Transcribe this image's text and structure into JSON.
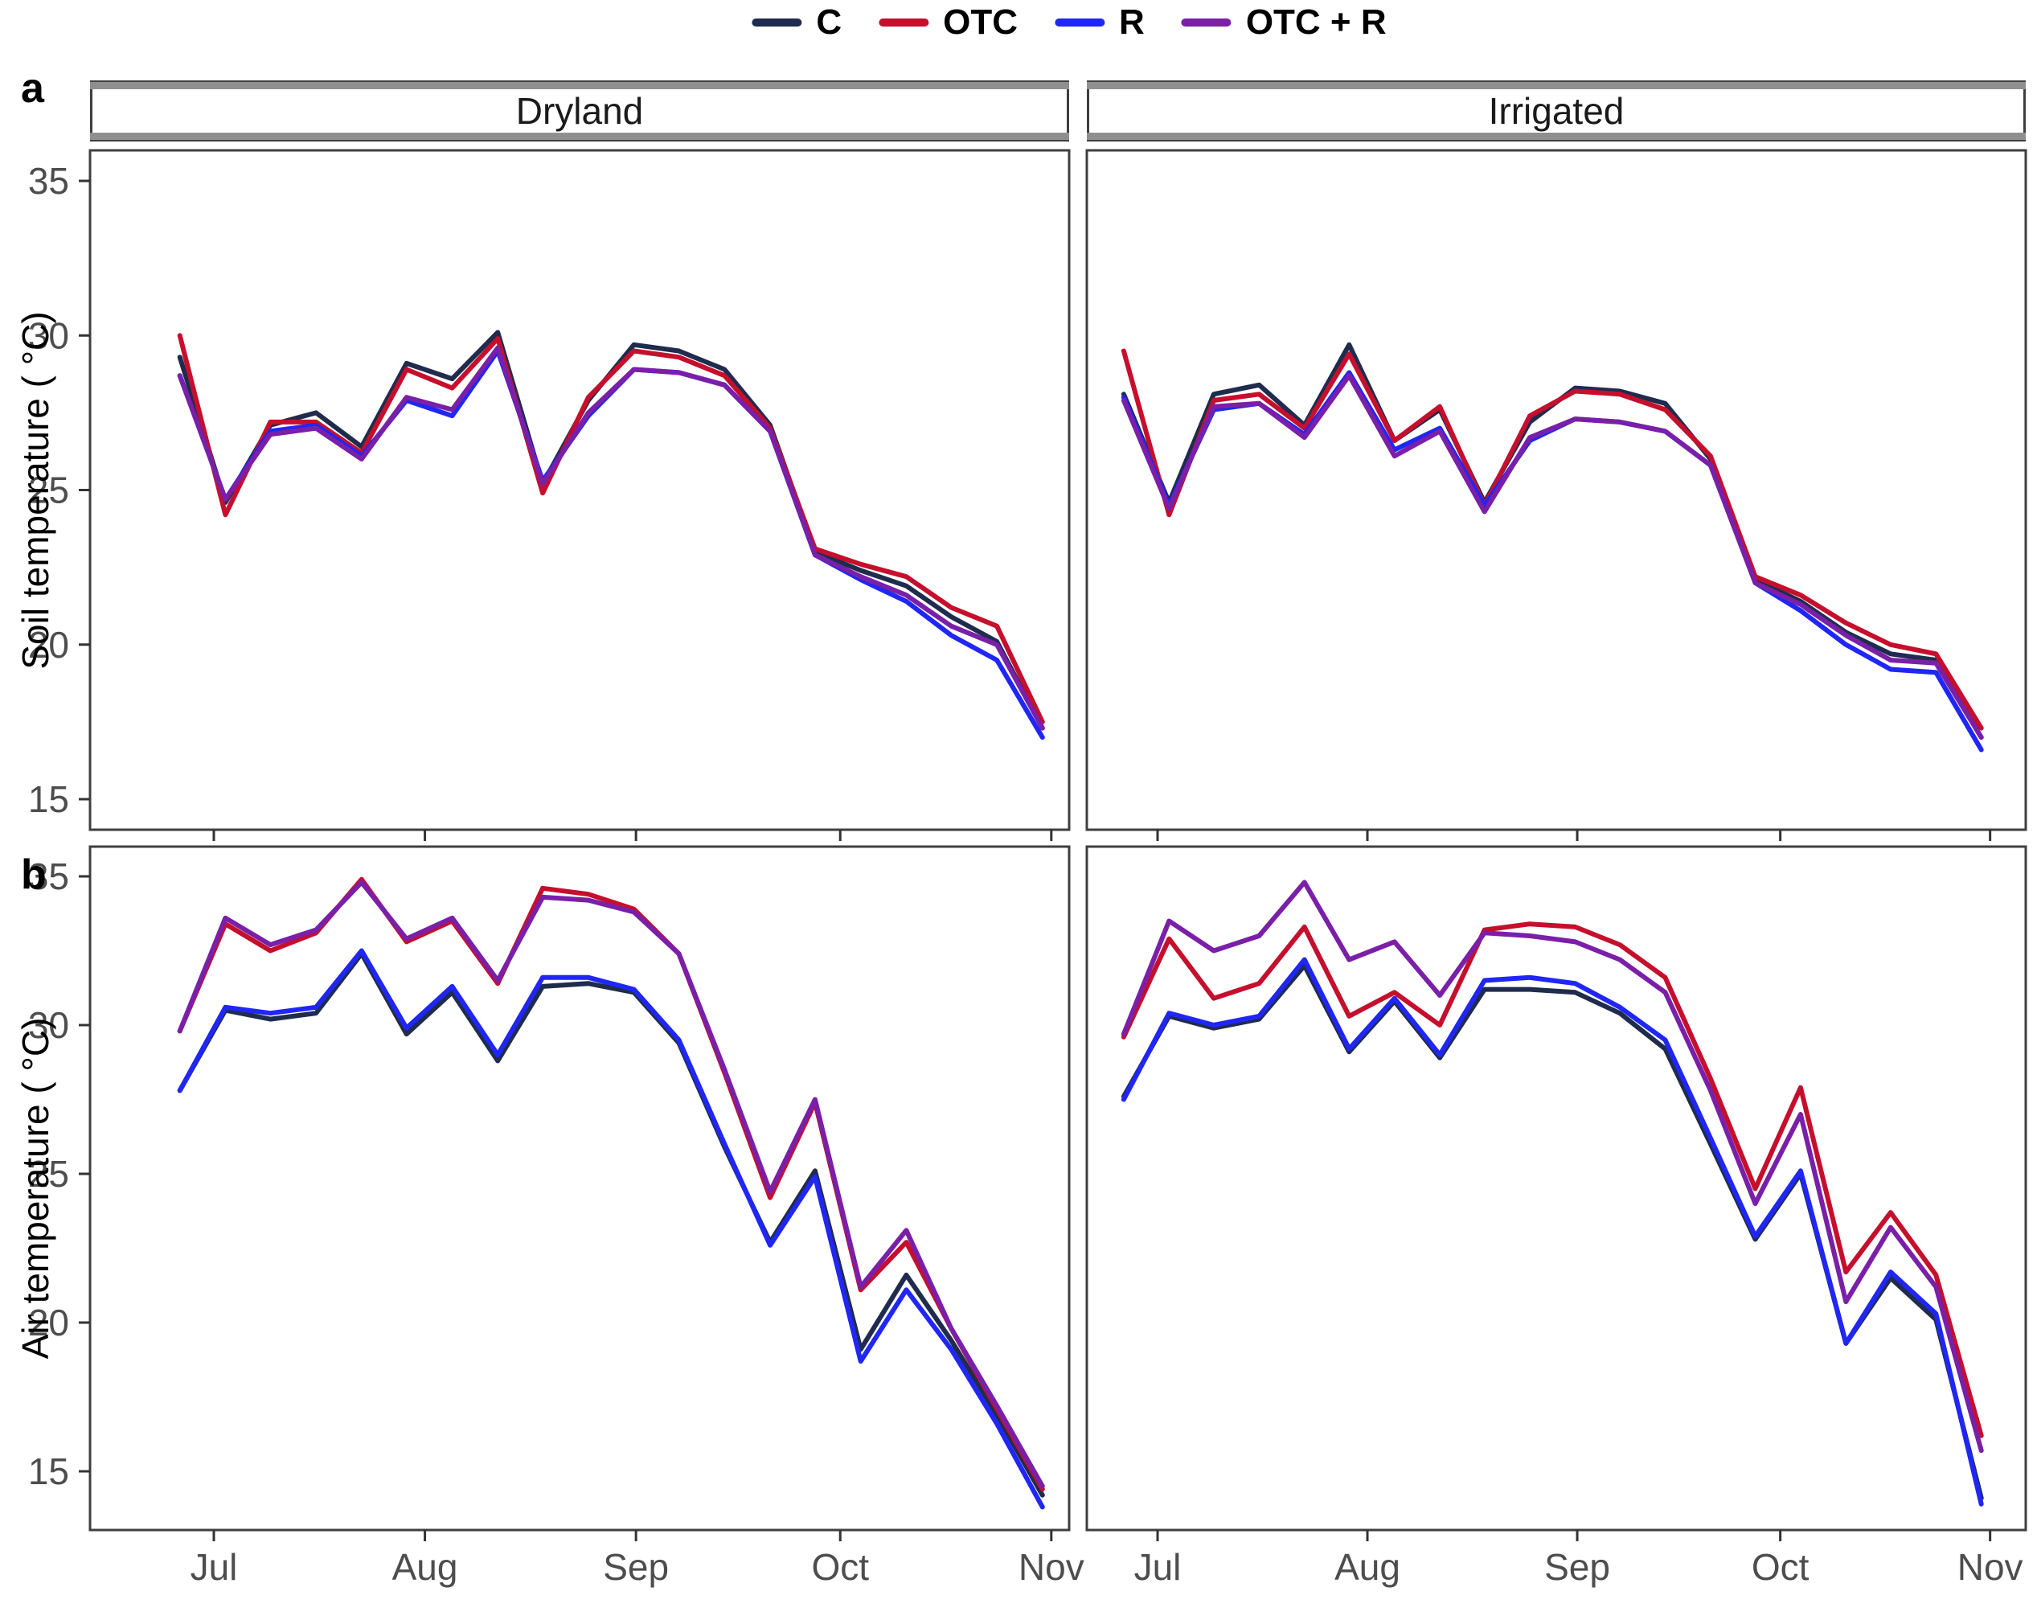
{
  "figure": {
    "panel_labels": [
      "a",
      "b"
    ],
    "facets": [
      "Dryland",
      "Irrigated"
    ],
    "background": "#ffffff",
    "border_color": "#3f3f3f",
    "tick_text_color": "#4d4d4d"
  },
  "legend": {
    "position": "top-center",
    "items": [
      {
        "label": "C",
        "color": "#1f2c4d"
      },
      {
        "label": "OTC",
        "color": "#c50f2d"
      },
      {
        "label": "R",
        "color": "#2026f5"
      },
      {
        "label": "OTC + R",
        "color": "#7a1fa8"
      }
    ]
  },
  "axes": {
    "y_label_top": "Soil temperature ( °C)",
    "y_label_bottom": "Air temperature ( °C)",
    "y_ticks": [
      35,
      30,
      25,
      20,
      15
    ],
    "x_tick_labels": [
      "Jul",
      "Aug",
      "Sep",
      "Oct",
      "Nov"
    ],
    "x_tick_days": [
      182,
      213,
      244,
      274,
      305
    ]
  },
  "chart_data": [
    {
      "id": "soil-dryland",
      "type": "line",
      "row": "a",
      "facet": "Dryland",
      "ylabel": "Soil temperature ( °C)",
      "ylim": [
        14,
        36.5
      ],
      "yticks": [
        15,
        20,
        25,
        30,
        35
      ],
      "grid": false,
      "legend_position": "top",
      "x_unit": "day_of_year (Jun 26 – Oct 31, ~weekly)",
      "x": [
        177,
        183.7,
        190.3,
        197,
        203.7,
        210.3,
        217,
        223.7,
        230.3,
        237,
        243.7,
        250.3,
        257,
        263.7,
        270.3,
        277,
        283.7,
        290.3,
        297,
        303.7
      ],
      "series": [
        {
          "name": "C",
          "color": "#1f2c4d",
          "values": [
            29.3,
            24.6,
            27.1,
            27.5,
            26.4,
            29.1,
            28.6,
            30.1,
            25.2,
            27.9,
            29.7,
            29.5,
            28.9,
            27.1,
            23.0,
            22.4,
            21.9,
            20.9,
            20.1,
            17.3
          ]
        },
        {
          "name": "OTC",
          "color": "#c50f2d",
          "values": [
            30.0,
            24.2,
            27.2,
            27.2,
            26.2,
            28.9,
            28.3,
            29.9,
            24.9,
            28.0,
            29.5,
            29.3,
            28.7,
            27.0,
            23.1,
            22.6,
            22.2,
            21.2,
            20.6,
            17.5
          ]
        },
        {
          "name": "R",
          "color": "#2026f5",
          "values": [
            28.7,
            24.7,
            26.9,
            27.1,
            26.1,
            27.9,
            27.4,
            29.5,
            25.3,
            27.4,
            28.9,
            28.8,
            28.4,
            26.9,
            22.9,
            22.1,
            21.4,
            20.3,
            19.5,
            17.0
          ]
        },
        {
          "name": "OTC + R",
          "color": "#7a1fa8",
          "values": [
            28.7,
            24.7,
            26.8,
            27.0,
            26.0,
            28.0,
            27.6,
            29.6,
            25.2,
            27.5,
            28.9,
            28.8,
            28.4,
            26.9,
            22.9,
            22.2,
            21.6,
            20.6,
            20.0,
            17.3
          ]
        }
      ]
    },
    {
      "id": "soil-irrigated",
      "type": "line",
      "row": "a",
      "facet": "Irrigated",
      "ylabel": "Soil temperature ( °C)",
      "ylim": [
        14,
        36.5
      ],
      "yticks": [
        15,
        20,
        25,
        30,
        35
      ],
      "grid": false,
      "legend_position": "top",
      "x_unit": "day_of_year (Jun 26 – Oct 31, ~weekly)",
      "x": [
        177,
        183.7,
        190.3,
        197,
        203.7,
        210.3,
        217,
        223.7,
        230.3,
        237,
        243.7,
        250.3,
        257,
        263.7,
        270.3,
        277,
        283.7,
        290.3,
        297,
        303.7
      ],
      "series": [
        {
          "name": "C",
          "color": "#1f2c4d",
          "values": [
            28.1,
            24.6,
            28.1,
            28.4,
            27.1,
            29.7,
            26.6,
            27.6,
            24.6,
            27.2,
            28.3,
            28.2,
            27.8,
            26.0,
            22.1,
            21.4,
            20.4,
            19.7,
            19.5,
            17.0
          ]
        },
        {
          "name": "OTC",
          "color": "#c50f2d",
          "values": [
            29.5,
            24.2,
            27.9,
            28.1,
            27.0,
            29.4,
            26.6,
            27.7,
            24.5,
            27.4,
            28.2,
            28.1,
            27.6,
            26.1,
            22.2,
            21.6,
            20.7,
            20.0,
            19.7,
            17.3
          ]
        },
        {
          "name": "R",
          "color": "#2026f5",
          "values": [
            28.0,
            24.5,
            27.6,
            27.8,
            26.8,
            28.8,
            26.3,
            27.0,
            24.5,
            26.6,
            27.3,
            27.2,
            26.9,
            25.8,
            22.0,
            21.1,
            20.0,
            19.2,
            19.1,
            16.6
          ]
        },
        {
          "name": "OTC + R",
          "color": "#7a1fa8",
          "values": [
            27.9,
            24.4,
            27.7,
            27.8,
            26.7,
            28.7,
            26.1,
            26.9,
            24.3,
            26.7,
            27.3,
            27.2,
            26.9,
            25.8,
            22.0,
            21.3,
            20.3,
            19.5,
            19.4,
            17.0
          ]
        }
      ]
    },
    {
      "id": "air-dryland",
      "type": "line",
      "row": "b",
      "facet": "Dryland",
      "ylabel": "Air temperature ( °C)",
      "ylim": [
        13,
        36.2
      ],
      "yticks": [
        15,
        20,
        25,
        30,
        35
      ],
      "grid": false,
      "legend_position": "top",
      "x_unit": "day_of_year (Jun 26 – Oct 31, ~weekly)",
      "x": [
        177,
        183.7,
        190.3,
        197,
        203.7,
        210.3,
        217,
        223.7,
        230.3,
        237,
        243.7,
        250.3,
        257,
        263.7,
        270.3,
        277,
        283.7,
        290.3,
        297,
        303.7
      ],
      "series": [
        {
          "name": "C",
          "color": "#1f2c4d",
          "values": [
            27.8,
            30.5,
            30.2,
            30.4,
            32.4,
            29.7,
            31.1,
            28.8,
            31.3,
            31.4,
            31.1,
            29.4,
            25.9,
            22.7,
            25.1,
            19.1,
            21.6,
            19.4,
            16.9,
            14.2
          ]
        },
        {
          "name": "OTC",
          "color": "#c50f2d",
          "values": [
            29.8,
            33.4,
            32.5,
            33.1,
            34.9,
            32.8,
            33.5,
            31.4,
            34.6,
            34.4,
            33.9,
            32.4,
            28.4,
            24.2,
            27.4,
            21.1,
            22.7,
            19.8,
            17.1,
            14.4
          ]
        },
        {
          "name": "R",
          "color": "#2026f5",
          "values": [
            27.8,
            30.6,
            30.4,
            30.6,
            32.5,
            29.9,
            31.3,
            29.0,
            31.6,
            31.6,
            31.2,
            29.5,
            26.0,
            22.6,
            24.9,
            18.7,
            21.1,
            19.1,
            16.6,
            13.8
          ]
        },
        {
          "name": "OTC + R",
          "color": "#7a1fa8",
          "values": [
            29.8,
            33.6,
            32.7,
            33.2,
            34.8,
            32.9,
            33.6,
            31.5,
            34.3,
            34.2,
            33.8,
            32.4,
            28.5,
            24.4,
            27.5,
            21.2,
            23.1,
            19.8,
            17.2,
            14.5
          ]
        }
      ]
    },
    {
      "id": "air-irrigated",
      "type": "line",
      "row": "b",
      "facet": "Irrigated",
      "ylabel": "Air temperature ( °C)",
      "ylim": [
        13,
        36.2
      ],
      "yticks": [
        15,
        20,
        25,
        30,
        35
      ],
      "grid": false,
      "legend_position": "top",
      "x_unit": "day_of_year (Jun 26 – Oct 31, ~weekly)",
      "x": [
        177,
        183.7,
        190.3,
        197,
        203.7,
        210.3,
        217,
        223.7,
        230.3,
        237,
        243.7,
        250.3,
        257,
        263.7,
        270.3,
        277,
        283.7,
        290.3,
        297,
        303.7
      ],
      "series": [
        {
          "name": "C",
          "color": "#1f2c4d",
          "values": [
            27.6,
            30.3,
            29.9,
            30.2,
            32.0,
            29.1,
            30.8,
            28.9,
            31.2,
            31.2,
            31.1,
            30.4,
            29.2,
            26.0,
            22.8,
            25.0,
            19.3,
            21.5,
            20.1,
            14.1
          ]
        },
        {
          "name": "OTC",
          "color": "#c50f2d",
          "values": [
            29.6,
            32.9,
            30.9,
            31.4,
            33.3,
            30.3,
            31.1,
            30.0,
            33.2,
            33.4,
            33.3,
            32.7,
            31.6,
            28.2,
            24.5,
            27.9,
            21.7,
            23.7,
            21.6,
            16.2
          ]
        },
        {
          "name": "R",
          "color": "#2026f5",
          "values": [
            27.5,
            30.4,
            30.0,
            30.3,
            32.2,
            29.2,
            30.9,
            29.0,
            31.5,
            31.6,
            31.4,
            30.6,
            29.5,
            26.2,
            22.9,
            25.1,
            19.3,
            21.7,
            20.3,
            13.9
          ]
        },
        {
          "name": "OTC + R",
          "color": "#7a1fa8",
          "values": [
            29.7,
            33.5,
            32.5,
            33.0,
            34.8,
            32.2,
            32.8,
            31.0,
            33.1,
            33.0,
            32.8,
            32.2,
            31.1,
            27.8,
            24.0,
            27.0,
            20.7,
            23.2,
            21.2,
            15.7
          ]
        }
      ]
    }
  ]
}
